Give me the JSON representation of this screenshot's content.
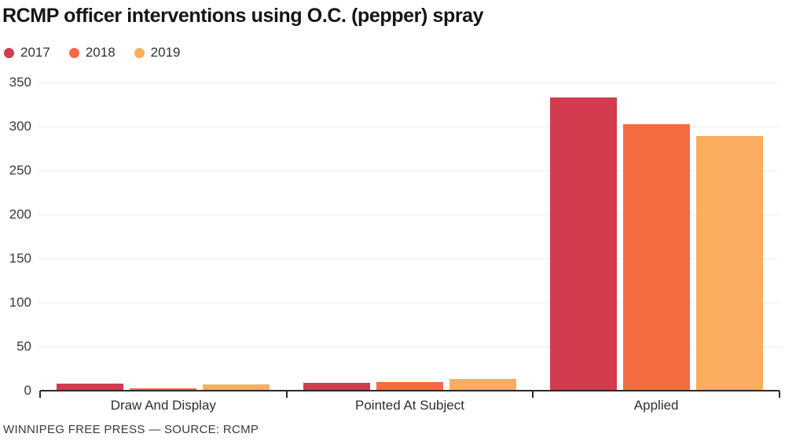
{
  "header": {
    "title": "RCMP officer interventions using O.C. (pepper) spray"
  },
  "footer": {
    "credit": "WINNIPEG FREE PRESS — SOURCE: RCMP"
  },
  "colors": {
    "series_2017": "#d23c4e",
    "series_2018": "#f46b41",
    "series_2019": "#fbad60",
    "grid": "#ececec",
    "axis": "#2b2b2b",
    "text": "#333333"
  },
  "chart_data": {
    "type": "bar",
    "title": "RCMP officer interventions using O.C. (pepper) spray",
    "categories": [
      "Draw And Display",
      "Pointed At Subject",
      "Applied"
    ],
    "series": [
      {
        "name": "2017",
        "color": "#d23c4e",
        "values": [
          8,
          9,
          333
        ]
      },
      {
        "name": "2018",
        "color": "#f46b41",
        "values": [
          3,
          10,
          303
        ]
      },
      {
        "name": "2019",
        "color": "#fbad60",
        "values": [
          7,
          13,
          289
        ]
      }
    ],
    "xlabel": "",
    "ylabel": "",
    "ylim": [
      0,
      350
    ],
    "yticks": [
      0,
      50,
      100,
      150,
      200,
      250,
      300,
      350
    ],
    "grid": true,
    "legend_position": "top-left",
    "source": "WINNIPEG FREE PRESS — SOURCE: RCMP"
  }
}
